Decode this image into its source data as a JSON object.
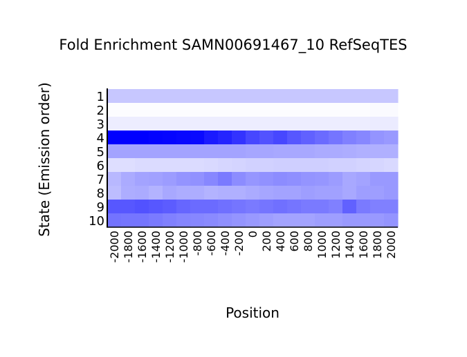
{
  "chart_data": {
    "type": "heatmap",
    "title": "Fold Enrichment SAMN00691467_10 RefSeqTES",
    "xlabel": "Position",
    "ylabel": "State (Emission order)",
    "x_tick_labels": [
      "-2000",
      "-1800",
      "-1600",
      "-1400",
      "-1200",
      "-1000",
      "-800",
      "-600",
      "-400",
      "-200",
      "0",
      "200",
      "400",
      "600",
      "800",
      "1000",
      "1200",
      "1400",
      "1600",
      "1800",
      "2000"
    ],
    "y_tick_labels": [
      "1",
      "2",
      "3",
      "4",
      "5",
      "6",
      "7",
      "8",
      "9",
      "10"
    ],
    "color_scale": {
      "low": "#ffffff",
      "high": "#0000ff"
    },
    "values": [
      [
        0.22,
        0.22,
        0.22,
        0.22,
        0.22,
        0.22,
        0.22,
        0.22,
        0.22,
        0.22,
        0.22,
        0.22,
        0.22,
        0.22,
        0.22,
        0.22,
        0.22,
        0.22,
        0.22,
        0.22,
        0.22
      ],
      [
        0.01,
        0.01,
        0.01,
        0.01,
        0.01,
        0.01,
        0.01,
        0.01,
        0.01,
        0.01,
        0.01,
        0.01,
        0.01,
        0.01,
        0.01,
        0.01,
        0.01,
        0.01,
        0.01,
        0.02,
        0.02
      ],
      [
        0.07,
        0.07,
        0.07,
        0.07,
        0.07,
        0.07,
        0.07,
        0.07,
        0.07,
        0.07,
        0.07,
        0.07,
        0.07,
        0.07,
        0.07,
        0.07,
        0.07,
        0.07,
        0.07,
        0.08,
        0.08
      ],
      [
        1.0,
        1.0,
        1.0,
        0.99,
        0.98,
        0.97,
        0.96,
        0.9,
        0.86,
        0.8,
        0.72,
        0.68,
        0.72,
        0.66,
        0.62,
        0.58,
        0.54,
        0.5,
        0.47,
        0.42,
        0.4
      ],
      [
        0.36,
        0.36,
        0.36,
        0.36,
        0.36,
        0.36,
        0.36,
        0.36,
        0.36,
        0.36,
        0.35,
        0.35,
        0.34,
        0.34,
        0.34,
        0.33,
        0.33,
        0.32,
        0.31,
        0.31,
        0.31
      ],
      [
        0.13,
        0.13,
        0.14,
        0.14,
        0.14,
        0.14,
        0.14,
        0.15,
        0.16,
        0.17,
        0.18,
        0.18,
        0.19,
        0.19,
        0.19,
        0.19,
        0.18,
        0.18,
        0.17,
        0.16,
        0.15
      ],
      [
        0.28,
        0.33,
        0.36,
        0.37,
        0.39,
        0.42,
        0.43,
        0.47,
        0.52,
        0.45,
        0.41,
        0.43,
        0.45,
        0.44,
        0.42,
        0.41,
        0.39,
        0.34,
        0.36,
        0.4,
        0.4
      ],
      [
        0.26,
        0.32,
        0.33,
        0.3,
        0.34,
        0.32,
        0.32,
        0.3,
        0.31,
        0.31,
        0.33,
        0.35,
        0.36,
        0.36,
        0.38,
        0.37,
        0.37,
        0.34,
        0.38,
        0.38,
        0.4
      ],
      [
        0.66,
        0.66,
        0.68,
        0.66,
        0.64,
        0.6,
        0.58,
        0.58,
        0.56,
        0.54,
        0.52,
        0.54,
        0.56,
        0.54,
        0.52,
        0.52,
        0.5,
        0.62,
        0.52,
        0.5,
        0.5
      ],
      [
        0.55,
        0.54,
        0.54,
        0.52,
        0.5,
        0.48,
        0.47,
        0.46,
        0.44,
        0.42,
        0.4,
        0.38,
        0.36,
        0.36,
        0.36,
        0.38,
        0.38,
        0.4,
        0.4,
        0.4,
        0.42
      ]
    ]
  }
}
